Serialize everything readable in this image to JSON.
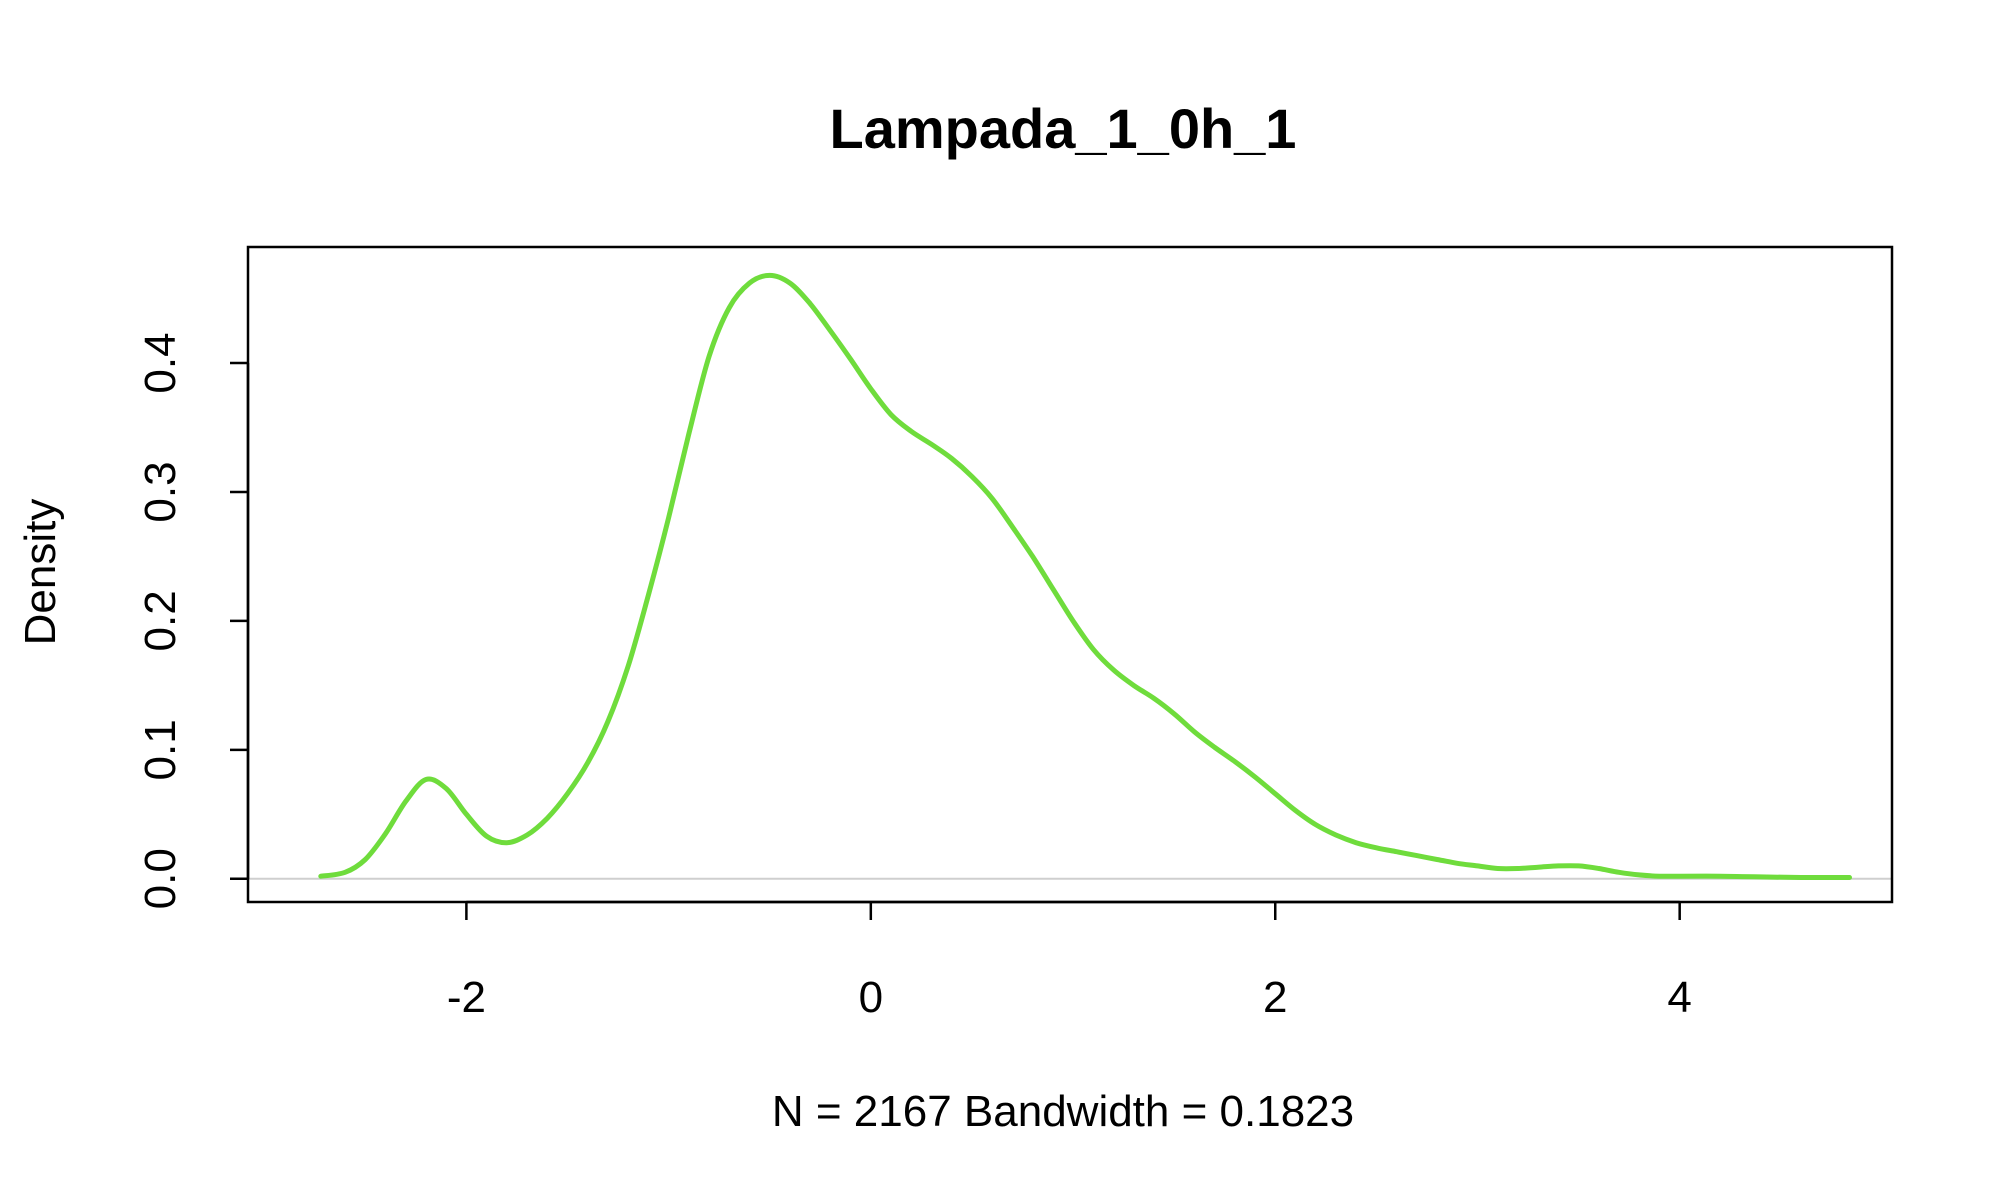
{
  "chart_data": {
    "type": "line",
    "title": "Lampada_1_0h_1",
    "xlabel": "N = 2167   Bandwidth = 0.1823",
    "ylabel": "Density",
    "xlim": [
      -3.08,
      5.05
    ],
    "ylim": [
      -0.018,
      0.49
    ],
    "x_ticks": [
      {
        "value": -2,
        "label": "-2"
      },
      {
        "value": 0,
        "label": "0"
      },
      {
        "value": 2,
        "label": "2"
      },
      {
        "value": 4,
        "label": "4"
      }
    ],
    "y_ticks": [
      {
        "value": 0.0,
        "label": "0.0"
      },
      {
        "value": 0.1,
        "label": "0.1"
      },
      {
        "value": 0.2,
        "label": "0.2"
      },
      {
        "value": 0.3,
        "label": "0.3"
      },
      {
        "value": 0.4,
        "label": "0.4"
      }
    ],
    "zero_line": true,
    "grid": false,
    "legend": "none",
    "series": [
      {
        "color": "#6fdc3c",
        "x": [
          -2.72,
          -2.6,
          -2.5,
          -2.4,
          -2.3,
          -2.2,
          -2.1,
          -2.0,
          -1.9,
          -1.8,
          -1.7,
          -1.6,
          -1.5,
          -1.4,
          -1.3,
          -1.2,
          -1.1,
          -1.0,
          -0.9,
          -0.8,
          -0.7,
          -0.6,
          -0.5,
          -0.4,
          -0.3,
          -0.2,
          -0.1,
          0.0,
          0.1,
          0.2,
          0.3,
          0.4,
          0.5,
          0.6,
          0.7,
          0.8,
          0.9,
          1.0,
          1.1,
          1.2,
          1.3,
          1.4,
          1.5,
          1.6,
          1.7,
          1.8,
          1.9,
          2.0,
          2.1,
          2.2,
          2.3,
          2.4,
          2.5,
          2.6,
          2.7,
          2.8,
          2.9,
          3.0,
          3.1,
          3.2,
          3.3,
          3.4,
          3.5,
          3.6,
          3.7,
          3.8,
          3.9,
          4.0,
          4.2,
          4.4,
          4.6,
          4.84
        ],
        "y": [
          0.002,
          0.005,
          0.015,
          0.035,
          0.06,
          0.077,
          0.07,
          0.05,
          0.033,
          0.028,
          0.034,
          0.047,
          0.066,
          0.09,
          0.122,
          0.165,
          0.22,
          0.28,
          0.345,
          0.405,
          0.443,
          0.462,
          0.468,
          0.462,
          0.446,
          0.425,
          0.403,
          0.38,
          0.36,
          0.347,
          0.337,
          0.326,
          0.312,
          0.295,
          0.273,
          0.25,
          0.225,
          0.2,
          0.178,
          0.162,
          0.15,
          0.14,
          0.128,
          0.114,
          0.102,
          0.091,
          0.079,
          0.066,
          0.053,
          0.042,
          0.034,
          0.028,
          0.024,
          0.021,
          0.018,
          0.015,
          0.012,
          0.01,
          0.008,
          0.008,
          0.009,
          0.01,
          0.01,
          0.008,
          0.005,
          0.003,
          0.002,
          0.002,
          0.002,
          0.0015,
          0.001,
          0.001
        ]
      }
    ]
  }
}
